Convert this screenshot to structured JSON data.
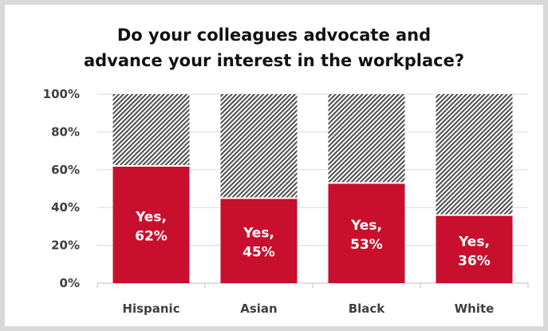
{
  "chart_data": {
    "type": "bar",
    "stacked": true,
    "title_lines": [
      "Do your colleagues advocate and",
      "advance your interest in the workplace?"
    ],
    "categories": [
      "Hispanic",
      "Asian",
      "Black",
      "White"
    ],
    "series": [
      {
        "values": [
          62,
          45,
          53,
          36
        ],
        "color": "#c8102e"
      },
      {
        "values": [
          38,
          55,
          47,
          64
        ],
        "color": "#808080"
      }
    ],
    "bar_label_prefix": "Yes,",
    "bar_labels": [
      "62%",
      "45%",
      "53%",
      "36%"
    ],
    "yticks": [
      "0%",
      "20%",
      "40%",
      "60%",
      "80%",
      "100%"
    ],
    "ylim": [
      0,
      100
    ],
    "grid": true,
    "legend": "none"
  }
}
